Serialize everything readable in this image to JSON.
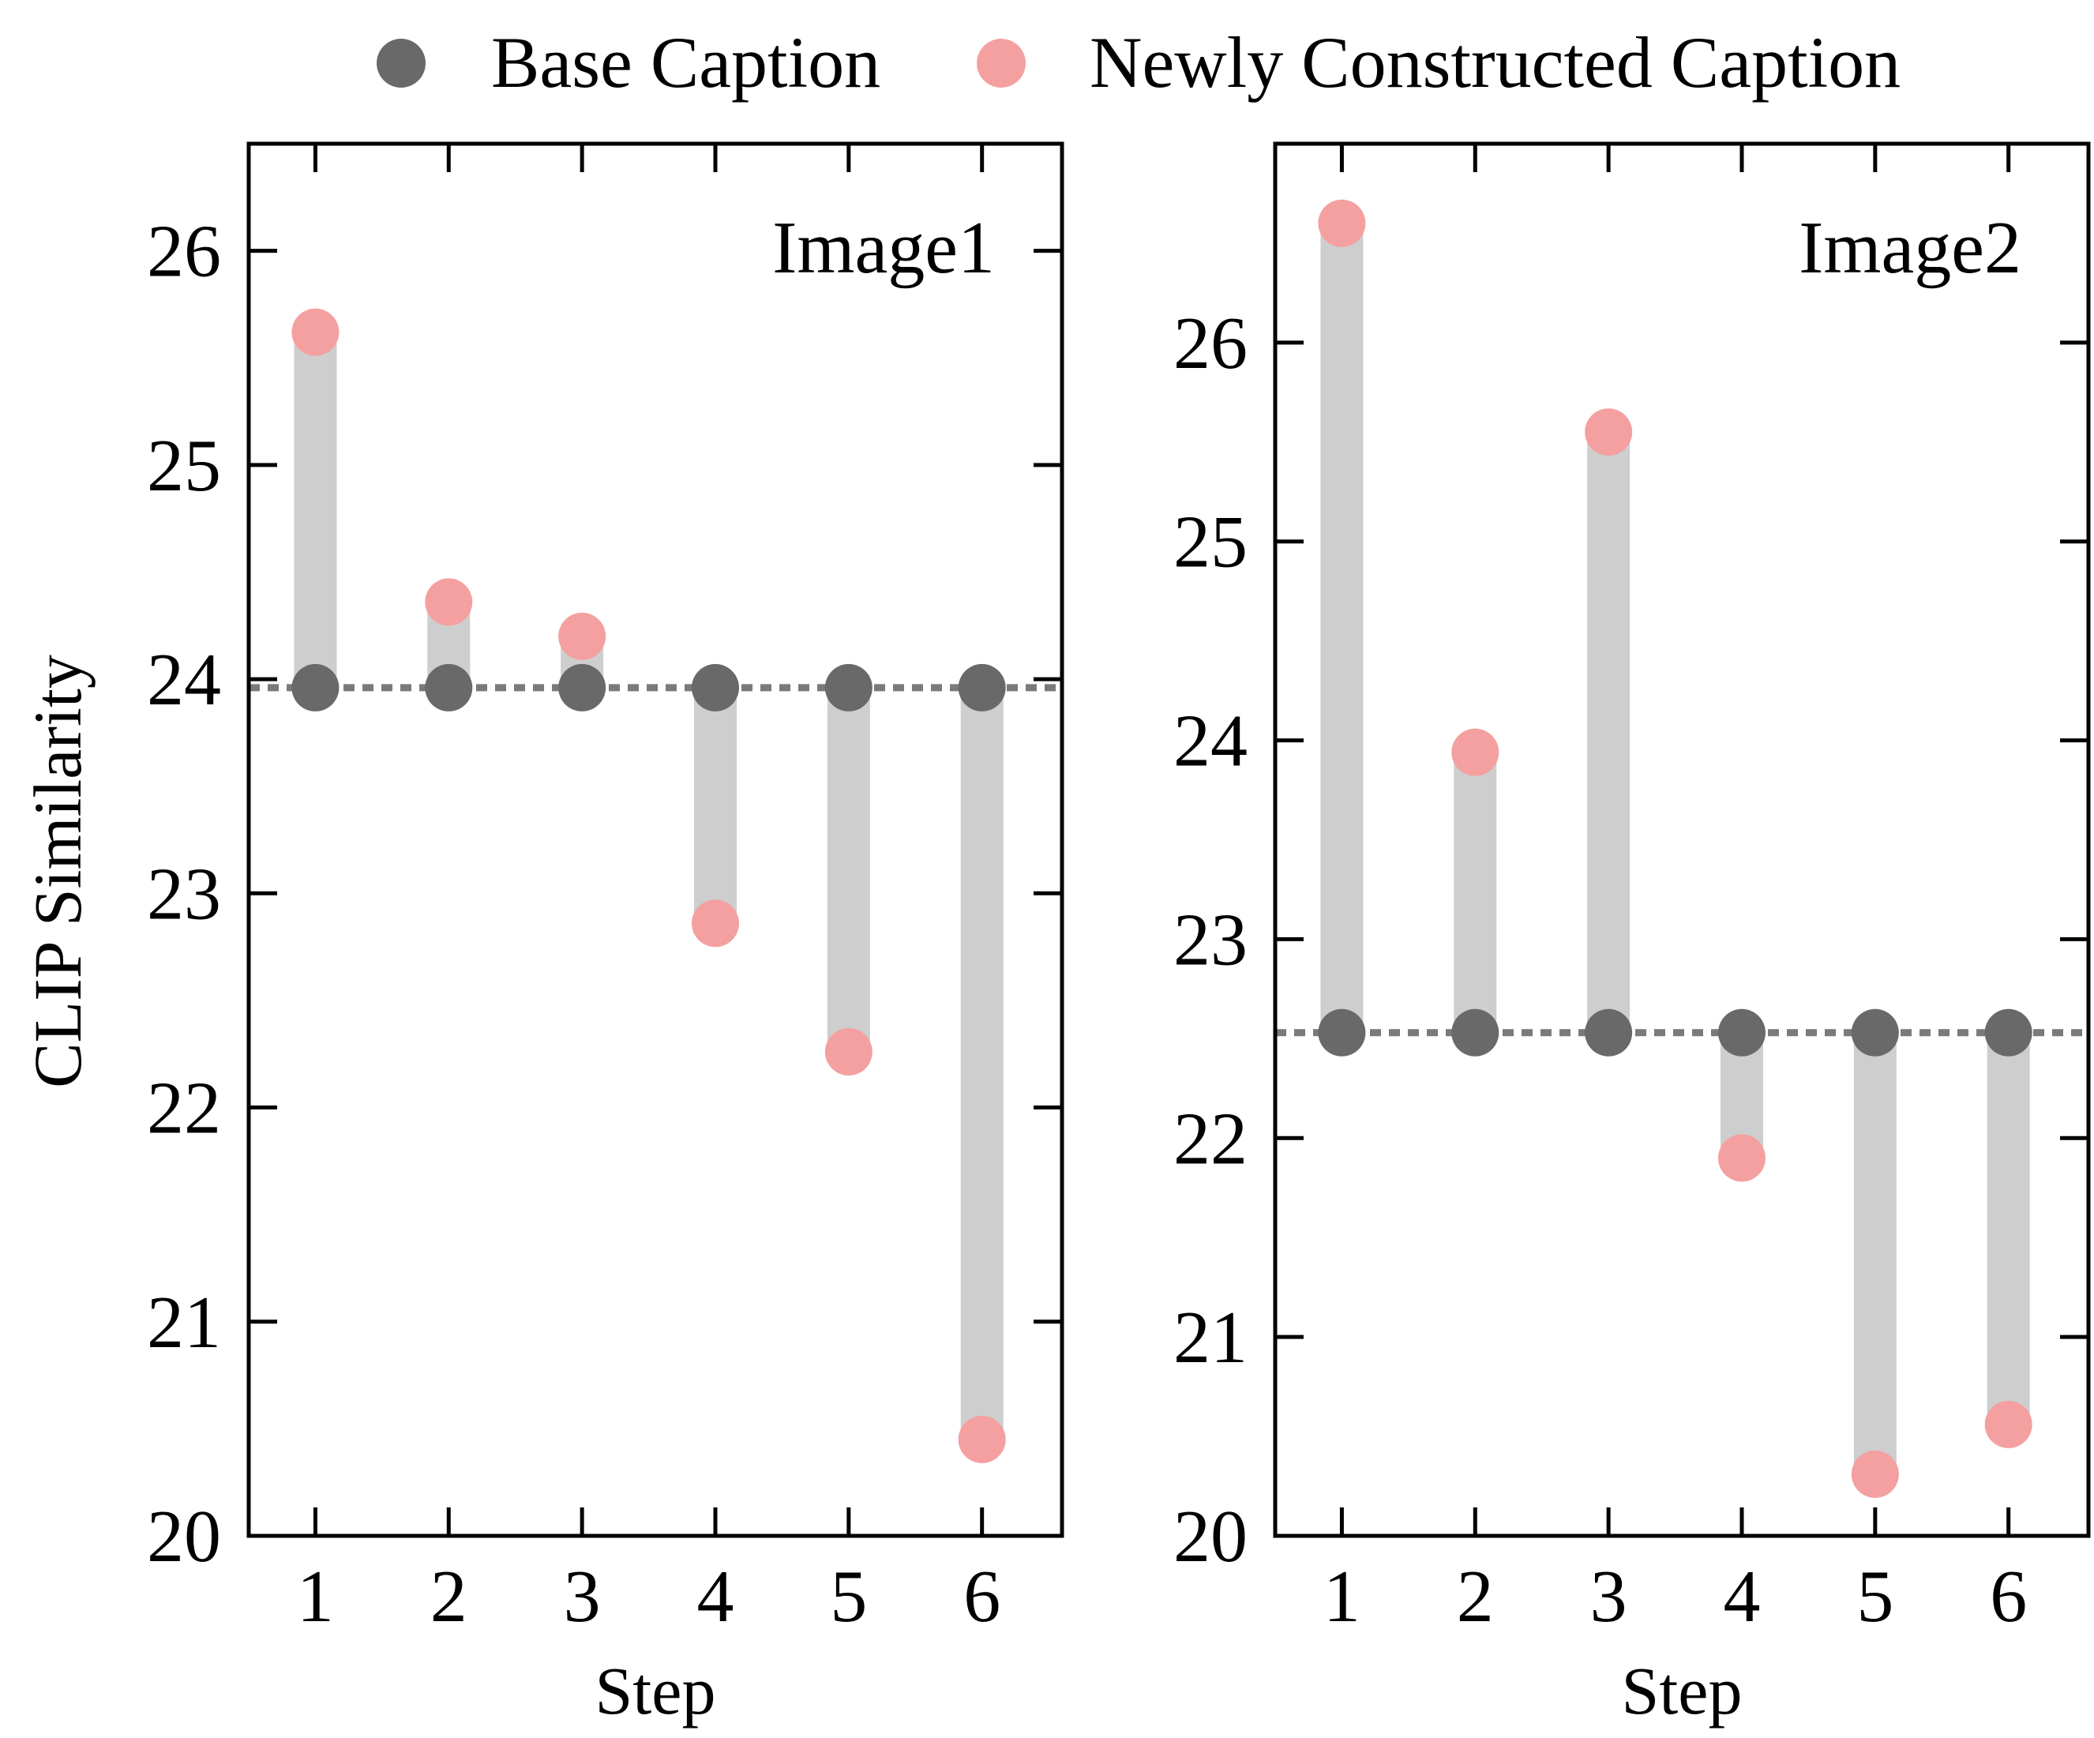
{
  "legend": {
    "items": [
      {
        "label": "Base Caption",
        "color": "#696969"
      },
      {
        "label": "Newly Constructed Caption",
        "color": "#f4a0a0"
      }
    ]
  },
  "colors": {
    "base": "#696969",
    "new": "#f4a0a0",
    "bar": "#cecece",
    "baseline": "#7a7a7a",
    "axis": "#000000"
  },
  "chart_data": [
    {
      "type": "scatter",
      "title": "Image1",
      "xlabel": "Step",
      "ylabel": "CLIP Similarity",
      "x": [
        1,
        2,
        3,
        4,
        5,
        6
      ],
      "xlim": [
        0.5,
        6.6
      ],
      "ylim": [
        20,
        26.5
      ],
      "yticks": [
        20,
        21,
        22,
        23,
        24,
        25,
        26
      ],
      "baseline": 23.96,
      "series": [
        {
          "name": "Base Caption",
          "values": [
            23.96,
            23.96,
            23.96,
            23.96,
            23.96,
            23.96
          ]
        },
        {
          "name": "Newly Constructed Caption",
          "values": [
            25.62,
            24.36,
            24.2,
            22.86,
            22.26,
            20.45
          ]
        }
      ]
    },
    {
      "type": "scatter",
      "title": "Image2",
      "xlabel": "Step",
      "ylabel": "",
      "x": [
        1,
        2,
        3,
        4,
        5,
        6
      ],
      "xlim": [
        0.5,
        6.6
      ],
      "ylim": [
        20,
        27
      ],
      "yticks": [
        20,
        21,
        22,
        23,
        24,
        25,
        26
      ],
      "baseline": 22.53,
      "series": [
        {
          "name": "Base Caption",
          "values": [
            22.53,
            22.53,
            22.53,
            22.53,
            22.53,
            22.53
          ]
        },
        {
          "name": "Newly Constructed Caption",
          "values": [
            26.6,
            23.94,
            25.55,
            21.9,
            20.31,
            20.56
          ]
        }
      ]
    }
  ]
}
